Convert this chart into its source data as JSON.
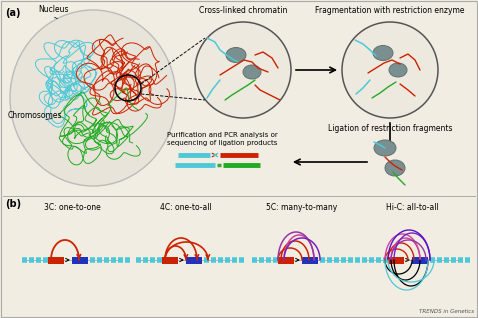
{
  "bg_color": "#f2ede3",
  "panel_a_label": "(a)",
  "panel_b_label": "(b)",
  "title_crosslinked": "Cross-linked chromatin",
  "title_fragmentation": "Fragmentation with restriction enzyme",
  "title_ligation": "Ligation of restriction fragments",
  "title_purification": "Purification and PCR analysis or\nsequencing of ligation products",
  "label_nucleus": "Nucleus",
  "label_chromosomes": "Chromosomes",
  "label_3c": "3C: one-to-one",
  "label_4c": "4C: one-to-all",
  "label_5c": "5C: many-to-many",
  "label_hic": "Hi-C: all-to-all",
  "trends_label": "TRENDS in Genetics",
  "cyan_color": "#4dc8d8",
  "red_color": "#cc2200",
  "green_color": "#22aa22",
  "blue_dark": "#2233bb",
  "purple_color": "#8833aa",
  "gray_color": "#888888",
  "gray_blob": "#7a9090",
  "dark_gray": "#555555",
  "black": "#000000",
  "border_color": "#aaaaaa",
  "sep_color": "#aaaaaa"
}
